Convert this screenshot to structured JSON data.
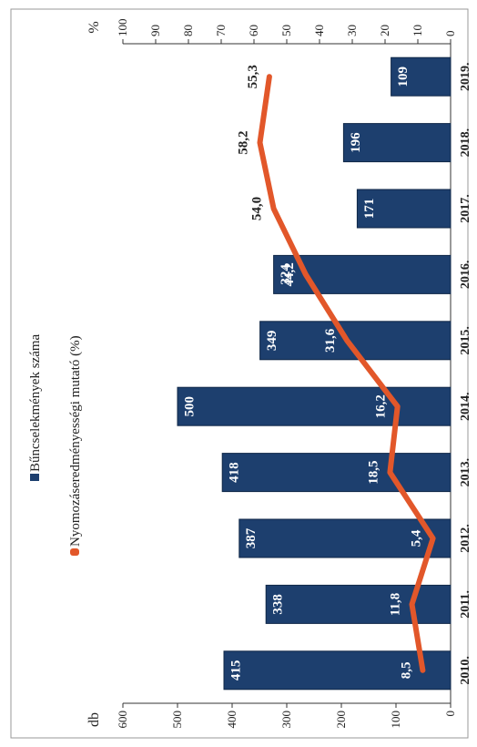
{
  "chart_data": {
    "type": "bar",
    "orientation": "rotated-90",
    "categories": [
      "2010.",
      "2011.",
      "2012.",
      "2013.",
      "2014.",
      "2015.",
      "2016.",
      "2017.",
      "2018.",
      "2019."
    ],
    "series": [
      {
        "name": "Bűncselekmények száma",
        "type": "bar",
        "axis": "left",
        "values": [
          415,
          338,
          387,
          418,
          500,
          349,
          324,
          171,
          196,
          109
        ],
        "labels": [
          "415",
          "338",
          "387",
          "418",
          "500",
          "349",
          "324",
          "171",
          "196",
          "109"
        ]
      },
      {
        "name": "Nyomozáseredményességi mutató (%)",
        "type": "line",
        "axis": "right",
        "values": [
          8.5,
          11.8,
          5.4,
          18.5,
          16.2,
          31.6,
          44.2,
          54.0,
          58.2,
          55.3
        ],
        "labels": [
          "8,5",
          "11,8",
          "5,4",
          "18,5",
          "16,2",
          "31,6",
          "44,2",
          "54,0",
          "58,2",
          "55,3"
        ]
      }
    ],
    "left_axis": {
      "label": "db",
      "min": 0,
      "max": 600,
      "ticks": [
        "0",
        "100",
        "200",
        "300",
        "400",
        "500",
        "600"
      ]
    },
    "right_axis": {
      "label": "%",
      "min": 0,
      "max": 100,
      "ticks": [
        "0",
        "10",
        "20",
        "30",
        "40",
        "50",
        "60",
        "70",
        "80",
        "90",
        "100"
      ]
    },
    "legend_position": "top",
    "colors": {
      "bar": "#1d3f6e",
      "bar_edge": "#0f2747",
      "line": "#e2572a"
    }
  }
}
